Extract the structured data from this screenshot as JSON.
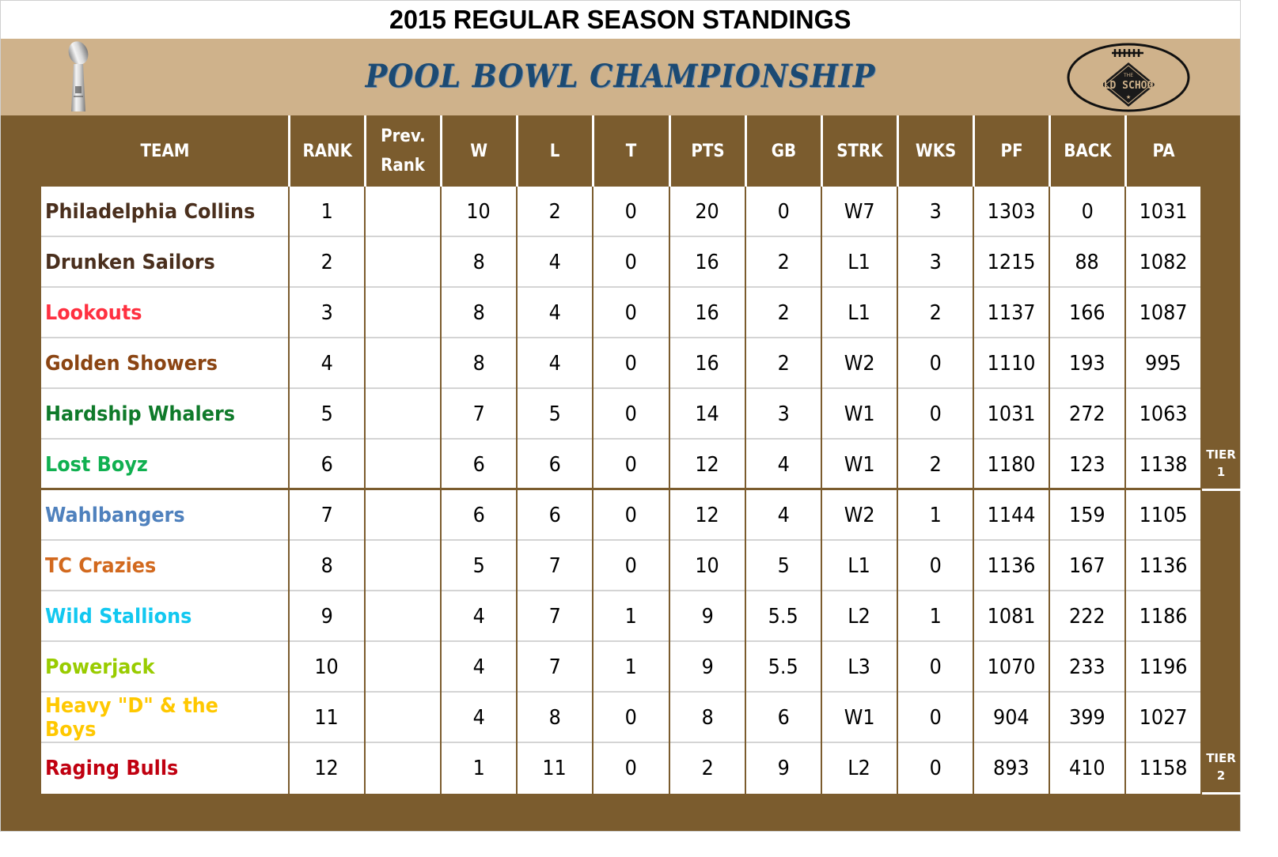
{
  "title": "2015 REGULAR SEASON STANDINGS",
  "banner": {
    "subtitle": "POOL BOWL CHAMPIONSHIP",
    "left_image": "trophy-icon",
    "right_image": "old-school-football-logo",
    "logo_text": "OLD SCHOOL",
    "logo_small_text": "THE"
  },
  "colors": {
    "frame_brown": "#7b5c2e",
    "banner_tan": "#cfb28b",
    "subtitle_blue": "#1c4a73",
    "header_text": "#ffffff"
  },
  "columns": [
    {
      "key": "team",
      "label": "TEAM"
    },
    {
      "key": "rank",
      "label": "RANK"
    },
    {
      "key": "prev_rank",
      "label": "Prev. Rank",
      "label_line1": "Prev.",
      "label_line2": "Rank"
    },
    {
      "key": "w",
      "label": "W"
    },
    {
      "key": "l",
      "label": "L"
    },
    {
      "key": "t",
      "label": "T"
    },
    {
      "key": "pts",
      "label": "PTS"
    },
    {
      "key": "gb",
      "label": "GB"
    },
    {
      "key": "strk",
      "label": "STRK"
    },
    {
      "key": "wks",
      "label": "WKS"
    },
    {
      "key": "pf",
      "label": "PF"
    },
    {
      "key": "back",
      "label": "BACK"
    },
    {
      "key": "pa",
      "label": "PA"
    }
  ],
  "rows": [
    {
      "team": "Philadelphia Collins",
      "color": "#4a2f1d",
      "rank": "1",
      "prev_rank": "",
      "w": "10",
      "l": "2",
      "t": "0",
      "pts": "20",
      "gb": "0",
      "strk": "W7",
      "wks": "3",
      "pf": "1303",
      "back": "0",
      "pa": "1031"
    },
    {
      "team": "Drunken Sailors",
      "color": "#4a2f1d",
      "rank": "2",
      "prev_rank": "",
      "w": "8",
      "l": "4",
      "t": "0",
      "pts": "16",
      "gb": "2",
      "strk": "L1",
      "wks": "3",
      "pf": "1215",
      "back": "88",
      "pa": "1082"
    },
    {
      "team": "Lookouts",
      "color": "#ff3040",
      "rank": "3",
      "prev_rank": "",
      "w": "8",
      "l": "4",
      "t": "0",
      "pts": "16",
      "gb": "2",
      "strk": "L1",
      "wks": "2",
      "pf": "1137",
      "back": "166",
      "pa": "1087"
    },
    {
      "team": "Golden Showers",
      "color": "#8b4513",
      "rank": "4",
      "prev_rank": "",
      "w": "8",
      "l": "4",
      "t": "0",
      "pts": "16",
      "gb": "2",
      "strk": "W2",
      "wks": "0",
      "pf": "1110",
      "back": "193",
      "pa": "995"
    },
    {
      "team": "Hardship Whalers",
      "color": "#0f7a2a",
      "rank": "5",
      "prev_rank": "",
      "w": "7",
      "l": "5",
      "t": "0",
      "pts": "14",
      "gb": "3",
      "strk": "W1",
      "wks": "0",
      "pf": "1031",
      "back": "272",
      "pa": "1063"
    },
    {
      "team": "Lost Boyz",
      "color": "#10b050",
      "rank": "6",
      "prev_rank": "",
      "w": "6",
      "l": "6",
      "t": "0",
      "pts": "12",
      "gb": "4",
      "strk": "W1",
      "wks": "2",
      "pf": "1180",
      "back": "123",
      "pa": "1138"
    },
    {
      "team": "Wahlbangers",
      "color": "#4f81bd",
      "rank": "7",
      "prev_rank": "",
      "w": "6",
      "l": "6",
      "t": "0",
      "pts": "12",
      "gb": "4",
      "strk": "W2",
      "wks": "1",
      "pf": "1144",
      "back": "159",
      "pa": "1105"
    },
    {
      "team": "TC Crazies",
      "color": "#d2691e",
      "rank": "8",
      "prev_rank": "",
      "w": "5",
      "l": "7",
      "t": "0",
      "pts": "10",
      "gb": "5",
      "strk": "L1",
      "wks": "0",
      "pf": "1136",
      "back": "167",
      "pa": "1136"
    },
    {
      "team": "Wild Stallions",
      "color": "#12c8f0",
      "rank": "9",
      "prev_rank": "",
      "w": "4",
      "l": "7",
      "t": "1",
      "pts": "9",
      "gb": "5.5",
      "strk": "L2",
      "wks": "1",
      "pf": "1081",
      "back": "222",
      "pa": "1186"
    },
    {
      "team": "Powerjack",
      "color": "#99cc00",
      "rank": "10",
      "prev_rank": "",
      "w": "4",
      "l": "7",
      "t": "1",
      "pts": "9",
      "gb": "5.5",
      "strk": "L3",
      "wks": "0",
      "pf": "1070",
      "back": "233",
      "pa": "1196"
    },
    {
      "team": "Heavy \"D\" & the Boys",
      "color": "#ffc800",
      "rank": "11",
      "prev_rank": "",
      "w": "4",
      "l": "8",
      "t": "0",
      "pts": "8",
      "gb": "6",
      "strk": "W1",
      "wks": "0",
      "pf": "904",
      "back": "399",
      "pa": "1027"
    },
    {
      "team": "Raging Bulls",
      "color": "#c00010",
      "rank": "12",
      "prev_rank": "",
      "w": "1",
      "l": "11",
      "t": "0",
      "pts": "2",
      "gb": "9",
      "strk": "L2",
      "wks": "0",
      "pf": "893",
      "back": "410",
      "pa": "1158"
    }
  ],
  "tiers": [
    {
      "label_line1": "TIER",
      "label_line2": "1",
      "rows": "1-6"
    },
    {
      "label_line1": "TIER",
      "label_line2": "2",
      "rows": "7-12"
    }
  ]
}
